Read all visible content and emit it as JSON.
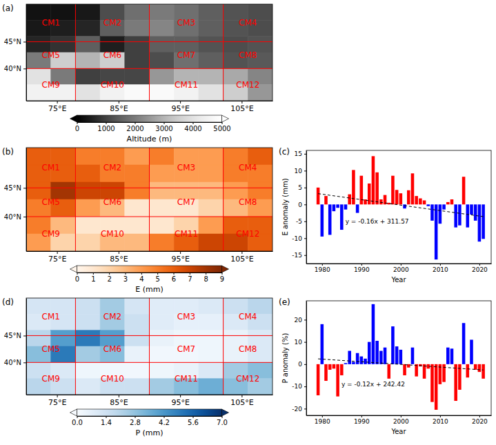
{
  "chart_data": [
    {
      "type": "heatmap",
      "title": "(a)",
      "color": "greys_r",
      "xlim": [
        70,
        110
      ],
      "ylim": [
        34,
        52
      ],
      "xticks": [
        {
          "value": 75,
          "label": "75°E"
        },
        {
          "value": 85,
          "label": "85°E"
        },
        {
          "value": 95,
          "label": "95°E"
        },
        {
          "value": 105,
          "label": "105°E"
        }
      ],
      "yticks": [
        {
          "value": 40,
          "label": "40°N"
        },
        {
          "value": 45,
          "label": "45°N"
        }
      ],
      "x_edges": [
        70,
        74,
        78,
        82,
        86,
        90,
        94,
        98,
        102,
        106,
        110
      ],
      "y_edges": [
        52,
        49,
        46,
        43,
        40,
        37,
        34
      ],
      "values": [
        [
          300,
          300,
          400,
          1200,
          1800,
          2000,
          1800,
          1500,
          1300,
          1200
        ],
        [
          400,
          500,
          600,
          1500,
          2000,
          2200,
          1800,
          1500,
          1300,
          1200
        ],
        [
          600,
          800,
          1500,
          500,
          1000,
          1500,
          1500,
          1300,
          1200,
          1300
        ],
        [
          2000,
          3500,
          3000,
          3500,
          1000,
          1200,
          1800,
          1500,
          1300,
          1400
        ],
        [
          4000,
          2000,
          1000,
          1100,
          1100,
          2500,
          3000,
          3000,
          2800,
          2200
        ],
        [
          4500,
          4500,
          4000,
          4500,
          4800,
          4800,
          4500,
          4000,
          3500,
          2500
        ]
      ],
      "colorbar": {
        "label": "Altitude (m)",
        "range": [
          0,
          5000
        ],
        "ticks": [
          0,
          1000,
          2000,
          3000,
          4000,
          5000
        ]
      },
      "regions": {
        "x_bounds": [
          78,
          90,
          102
        ],
        "y_bounds": [
          45,
          40
        ],
        "labels": [
          "CM1",
          "CM2",
          "CM3",
          "CM4",
          "CM5",
          "CM6",
          "CM7",
          "CM8",
          "CM9",
          "CM10",
          "CM11",
          "CM12"
        ]
      }
    },
    {
      "type": "heatmap",
      "title": "(b)",
      "color": "oranges",
      "xlim": [
        70,
        110
      ],
      "ylim": [
        34,
        52
      ],
      "xticks": [
        {
          "value": 75,
          "label": "75°E"
        },
        {
          "value": 85,
          "label": "85°E"
        },
        {
          "value": 95,
          "label": "95°E"
        },
        {
          "value": 105,
          "label": "105°E"
        }
      ],
      "yticks": [
        {
          "value": 40,
          "label": "40°N"
        },
        {
          "value": 45,
          "label": "45°N"
        }
      ],
      "x_edges": [
        70,
        74,
        78,
        82,
        86,
        90,
        94,
        98,
        102,
        106,
        110
      ],
      "y_edges": [
        52,
        49,
        46,
        43,
        40,
        37,
        34
      ],
      "values": [
        [
          6,
          6,
          5,
          5,
          4,
          5,
          4,
          4,
          5,
          6
        ],
        [
          6,
          6,
          6,
          5,
          5,
          4,
          4,
          4,
          5,
          5
        ],
        [
          6,
          8,
          7,
          7,
          5,
          3,
          3,
          3,
          4,
          5
        ],
        [
          5,
          6,
          4,
          3,
          1,
          1,
          1,
          2,
          3,
          4
        ],
        [
          5,
          3,
          1,
          1,
          1,
          1,
          2,
          4,
          6,
          6
        ],
        [
          4,
          2,
          2,
          3,
          3,
          5,
          6,
          7,
          7,
          6
        ]
      ],
      "colorbar": {
        "label": "E (mm)",
        "range": [
          0,
          9
        ],
        "ticks": [
          0,
          1,
          2,
          3,
          4,
          5,
          6,
          7,
          8,
          9
        ]
      },
      "regions": {
        "x_bounds": [
          78,
          90,
          102
        ],
        "y_bounds": [
          45,
          40
        ],
        "labels": [
          "CM1",
          "CM2",
          "CM3",
          "CM4",
          "CM5",
          "CM6",
          "CM7",
          "CM8",
          "CM9",
          "CM10",
          "CM11",
          "CM12"
        ]
      }
    },
    {
      "type": "bar",
      "title": "(c)",
      "x": [
        1979,
        1980,
        1981,
        1982,
        1983,
        1984,
        1985,
        1986,
        1987,
        1988,
        1989,
        1990,
        1991,
        1992,
        1993,
        1994,
        1995,
        1996,
        1997,
        1998,
        1999,
        2000,
        2001,
        2002,
        2003,
        2004,
        2005,
        2006,
        2007,
        2008,
        2009,
        2010,
        2011,
        2012,
        2013,
        2014,
        2015,
        2016,
        2017,
        2018,
        2019,
        2020,
        2021
      ],
      "values": [
        5,
        -9.5,
        2.5,
        -9,
        -2,
        -1,
        -7.5,
        -1.5,
        3,
        10.2,
        -2.5,
        8.5,
        1.5,
        6.2,
        14.3,
        9.5,
        1.5,
        2.8,
        0.5,
        8.5,
        4.3,
        3.3,
        -1.2,
        4.2,
        9.2,
        2.5,
        1.8,
        1.2,
        -0.5,
        -4.8,
        -16.3,
        -5.7,
        -1.5,
        0.7,
        1.5,
        -6.8,
        -6.2,
        8.2,
        -6.8,
        -3,
        -4.8,
        -11,
        -10.2
      ],
      "colors": [
        "red",
        "blue",
        "red",
        "blue",
        "blue",
        "blue",
        "blue",
        "blue",
        "red",
        "red",
        "blue",
        "red",
        "red",
        "red",
        "red",
        "red",
        "red",
        "red",
        "red",
        "red",
        "red",
        "red",
        "blue",
        "red",
        "red",
        "red",
        "red",
        "red",
        "blue",
        "blue",
        "blue",
        "blue",
        "blue",
        "red",
        "red",
        "blue",
        "blue",
        "red",
        "blue",
        "blue",
        "blue",
        "blue",
        "blue"
      ],
      "xlim": [
        1976,
        2023
      ],
      "ylim": [
        -17.5,
        16
      ],
      "xticks": [
        1980,
        1990,
        2000,
        2010,
        2020
      ],
      "yticks": [
        -15,
        -10,
        -5,
        0,
        5,
        10,
        15
      ],
      "x_label": "Year",
      "y_label": "E anomaly (mm)",
      "trend": {
        "x": [
          1979,
          2021
        ],
        "values": [
          3.2,
          -3.6
        ]
      },
      "annotations": [
        {
          "text": "y = -0.16x + 311.57",
          "x": 1994,
          "y": -5
        }
      ]
    },
    {
      "type": "heatmap",
      "title": "(d)",
      "color": "blues",
      "xlim": [
        70,
        110
      ],
      "ylim": [
        34,
        52
      ],
      "xticks": [
        {
          "value": 75,
          "label": "75°E"
        },
        {
          "value": 85,
          "label": "85°E"
        },
        {
          "value": 95,
          "label": "95°E"
        },
        {
          "value": 105,
          "label": "105°E"
        }
      ],
      "yticks": [
        {
          "value": 40,
          "label": "40°N"
        },
        {
          "value": 45,
          "label": "45°N"
        }
      ],
      "x_edges": [
        70,
        74,
        78,
        82,
        86,
        90,
        94,
        98,
        102,
        106,
        110
      ],
      "y_edges": [
        52,
        49,
        46,
        43,
        40,
        37,
        34
      ],
      "values": [
        [
          1.2,
          1.2,
          1.5,
          2.5,
          1.2,
          0.8,
          0.8,
          1,
          1.5,
          2
        ],
        [
          1,
          1.2,
          1.5,
          2.5,
          1.5,
          0.8,
          0.6,
          0.6,
          1,
          1.5
        ],
        [
          2,
          4,
          5,
          4,
          1.5,
          0.5,
          0.3,
          0.3,
          0.5,
          1
        ],
        [
          3,
          5,
          2.5,
          3,
          0.5,
          0.2,
          0.2,
          0.3,
          0.5,
          1
        ],
        [
          1.5,
          1,
          0.3,
          0.2,
          0.2,
          0.3,
          0.5,
          1,
          2.5,
          3
        ],
        [
          2,
          1.5,
          1,
          1.5,
          1.5,
          2.5,
          3,
          3.5,
          3,
          2.5
        ]
      ],
      "colorbar": {
        "label": "P (mm)",
        "range": [
          0,
          7
        ],
        "ticks": [
          {
            "value": 0,
            "label": "0.0"
          },
          1.4,
          2.8,
          4.2,
          5.6,
          {
            "value": 7,
            "label": "7.0"
          }
        ]
      },
      "regions": {
        "x_bounds": [
          78,
          90,
          102
        ],
        "y_bounds": [
          45,
          40
        ],
        "labels": [
          "CM1",
          "CM2",
          "CM3",
          "CM4",
          "CM5",
          "CM6",
          "CM7",
          "CM8",
          "CM9",
          "CM10",
          "CM11",
          "CM12"
        ]
      }
    },
    {
      "type": "bar",
      "title": "(e)",
      "x": [
        1979,
        1980,
        1981,
        1982,
        1983,
        1984,
        1985,
        1986,
        1987,
        1988,
        1989,
        1990,
        1991,
        1992,
        1993,
        1994,
        1995,
        1996,
        1997,
        1998,
        1999,
        2000,
        2001,
        2002,
        2003,
        2004,
        2005,
        2006,
        2007,
        2008,
        2009,
        2010,
        2011,
        2012,
        2013,
        2014,
        2015,
        2016,
        2017,
        2018,
        2019,
        2020,
        2021
      ],
      "values": [
        -14,
        18,
        -7.5,
        -2.5,
        -2,
        -14.5,
        -5,
        0.5,
        6,
        1,
        5,
        3.5,
        2.5,
        10,
        27,
        10.5,
        6,
        7.5,
        -6.5,
        17,
        8,
        6.5,
        -5,
        -1.5,
        7.5,
        -5.5,
        -1,
        -6.5,
        -2,
        -17,
        -20.5,
        -9,
        -8,
        7.5,
        7,
        -16.5,
        -11.5,
        18.5,
        -6,
        11,
        -2.5,
        -3.5,
        -6.5
      ],
      "colors": [
        "red",
        "blue",
        "red",
        "red",
        "red",
        "red",
        "red",
        "blue",
        "blue",
        "blue",
        "blue",
        "blue",
        "blue",
        "blue",
        "blue",
        "blue",
        "blue",
        "blue",
        "red",
        "blue",
        "blue",
        "blue",
        "red",
        "red",
        "blue",
        "red",
        "red",
        "red",
        "red",
        "red",
        "red",
        "red",
        "red",
        "blue",
        "blue",
        "red",
        "red",
        "blue",
        "red",
        "blue",
        "red",
        "red",
        "red"
      ],
      "xlim": [
        1976,
        2023
      ],
      "ylim": [
        -23,
        28.5
      ],
      "xticks": [
        1980,
        1990,
        2000,
        2010,
        2020
      ],
      "yticks": [
        -20,
        -10,
        0,
        10,
        20
      ],
      "x_label": "Year",
      "y_label": "P anomaly (%)",
      "trend": {
        "x": [
          1979,
          2021
        ],
        "values": [
          2.4,
          -2.6
        ]
      },
      "annotations": [
        {
          "text": "y = -0.12x + 242.42",
          "x": 1993,
          "y": -9
        }
      ]
    }
  ]
}
